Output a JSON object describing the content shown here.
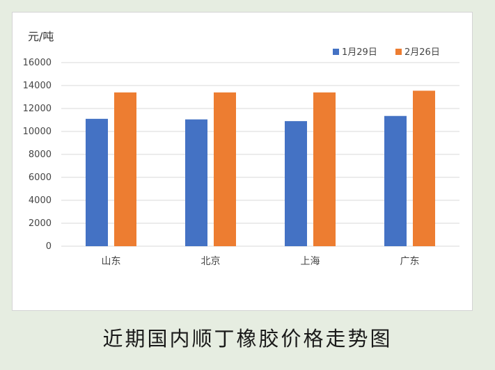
{
  "caption": "近期国内顺丁橡胶价格走势图",
  "chart_data": {
    "type": "bar",
    "ylabel": "元/吨",
    "ylim": [
      0,
      16000
    ],
    "yticks": [
      0,
      2000,
      4000,
      6000,
      8000,
      10000,
      12000,
      14000,
      16000
    ],
    "categories": [
      "山东",
      "北京",
      "上海",
      "广东"
    ],
    "series": [
      {
        "name": "1月29日",
        "color": "#4472c4",
        "values": [
          11100,
          11050,
          10900,
          11350
        ]
      },
      {
        "name": "2月26日",
        "color": "#ed7d31",
        "values": [
          13400,
          13400,
          13400,
          13550
        ]
      }
    ],
    "grid": true,
    "legend": "top-right"
  }
}
